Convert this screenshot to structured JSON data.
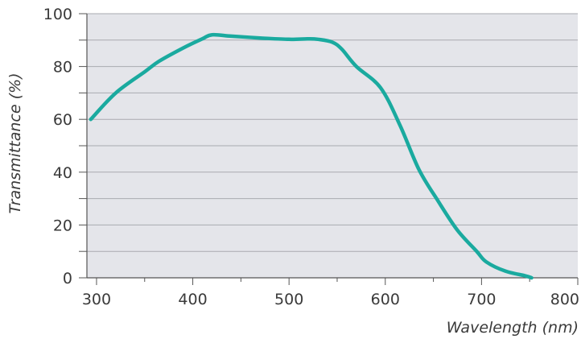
{
  "chart_data": {
    "type": "line",
    "title": "",
    "xlabel": "Wavelength (nm)",
    "ylabel": "Transmittance (%)",
    "xlim": [
      290,
      800
    ],
    "ylim": [
      0,
      100
    ],
    "x_ticks": [
      300,
      400,
      500,
      600,
      700,
      800
    ],
    "y_ticks": [
      0,
      20,
      40,
      60,
      80,
      100
    ],
    "x_tick_labels": [
      "300",
      "400",
      "500",
      "600",
      "700",
      "800"
    ],
    "y_tick_labels": [
      "0",
      "20",
      "40",
      "60",
      "80",
      "100"
    ],
    "grid": "horizontal",
    "plot_background": "#e4e5ea",
    "series": [
      {
        "color": "#1aaa9f",
        "x": [
          294,
          320,
          350,
          365,
          390,
          410,
          420,
          440,
          470,
          500,
          520,
          530,
          545,
          555,
          570,
          595,
          615,
          635,
          655,
          675,
          695,
          705,
          725,
          745,
          752
        ],
        "y": [
          60,
          70,
          78,
          82,
          87,
          90.5,
          92,
          91.5,
          90.8,
          90.3,
          90.5,
          90.3,
          89.2,
          86.5,
          80,
          72,
          58,
          41,
          29,
          18,
          10,
          6,
          2.5,
          0.8,
          0
        ]
      }
    ]
  }
}
